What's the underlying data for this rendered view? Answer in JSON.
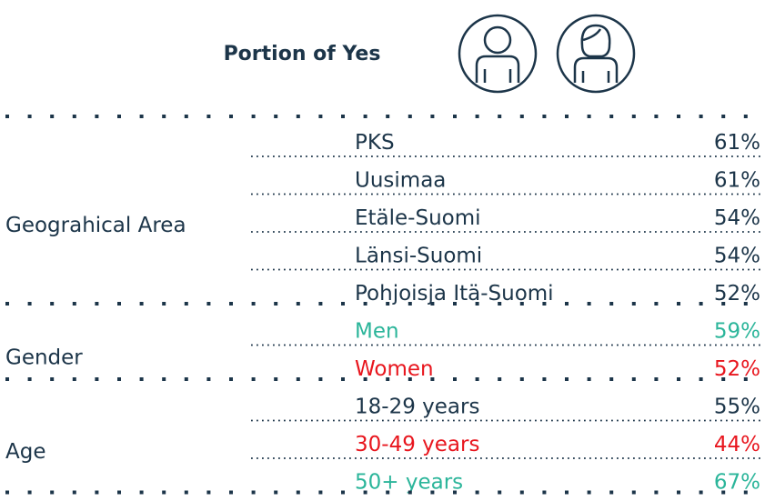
{
  "header": {
    "title": "Portion of Yes"
  },
  "table": {
    "groups": [
      {
        "label": "Geograhical Area",
        "rows": [
          {
            "label": "PKS",
            "value": "61%",
            "color": "#1c3549"
          },
          {
            "label": "Uusimaa",
            "value": "61%",
            "color": "#1c3549"
          },
          {
            "label": "Etäle-Suomi",
            "value": "54%",
            "color": "#1c3549"
          },
          {
            "label": "Länsi-Suomi",
            "value": "54%",
            "color": "#1c3549"
          },
          {
            "label": "Pohjoisja Itä-Suomi",
            "value": "52%",
            "color": "#1c3549"
          }
        ]
      },
      {
        "label": "Gender",
        "rows": [
          {
            "label": "Men",
            "value": "59%",
            "color": "#2bb59a"
          },
          {
            "label": "Women",
            "value": "52%",
            "color": "#e8161e"
          }
        ]
      },
      {
        "label": "Age",
        "rows": [
          {
            "label": "18-29 years",
            "value": "55%",
            "color": "#1c3549"
          },
          {
            "label": "30-49 years",
            "value": "44%",
            "color": "#e8161e"
          },
          {
            "label": "50+ years",
            "value": "67%",
            "color": "#2bb59a"
          }
        ]
      }
    ]
  }
}
